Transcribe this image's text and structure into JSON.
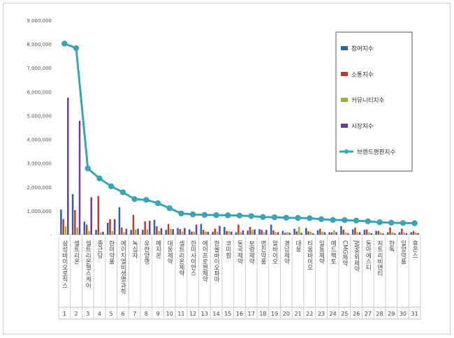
{
  "chart_data": {
    "type": "bar",
    "title": "",
    "xlabel": "",
    "ylabel": "",
    "ylim": [
      0,
      9000000
    ],
    "yticks": [
      "9,000,000",
      "8,000,000",
      "7,000,000",
      "6,000,000",
      "5,000,000",
      "4,000,000",
      "3,000,000",
      "2,000,000",
      "1,000,000",
      "-"
    ],
    "grid": false,
    "legend_position": "top-right",
    "categories": [
      "삼성바이오로직스",
      "셀트리온",
      "셀트리온헬스케어",
      "종근당",
      "한미약품",
      "에이치엘비생명과학",
      "녹십자",
      "유한양행",
      "메지온",
      "대웅제약",
      "셀트리온제약",
      "한미사이언스",
      "에이프로젠제약",
      "한올바이오파마",
      "코미팜",
      "동국제약",
      "보령제약",
      "영진약품",
      "알바이오",
      "경남제약",
      "대웅",
      "티움바이오",
      "일동제약",
      "메드팩토",
      "CMG제약",
      "JW중외제약",
      "동아에스티",
      "지트리비앤티",
      "한독",
      "일양약품",
      "휴온스"
    ],
    "indices": [
      "1",
      "2",
      "3",
      "4",
      "5",
      "6",
      "7",
      "8",
      "9",
      "10",
      "11",
      "12",
      "13",
      "14",
      "15",
      "16",
      "17",
      "18",
      "19",
      "20",
      "21",
      "22",
      "23",
      "24",
      "25",
      "26",
      "27",
      "28",
      "29",
      "30",
      "31"
    ],
    "series": [
      {
        "name": "참여지수",
        "color": "#2e5fa8",
        "type": "bar",
        "values": [
          1050000,
          1700000,
          550000,
          200000,
          500000,
          1150000,
          200000,
          200000,
          620000,
          200000,
          280000,
          220000,
          450000,
          120000,
          320000,
          100000,
          170000,
          230000,
          420000,
          160000,
          250000,
          280000,
          180000,
          100000,
          360000,
          220000,
          200000,
          160000,
          100000,
          100000,
          100000
        ]
      },
      {
        "name": "소통지수",
        "color": "#c0392b",
        "type": "bar",
        "values": [
          650000,
          1030000,
          420000,
          1620000,
          650000,
          300000,
          830000,
          560000,
          350000,
          450000,
          230000,
          130000,
          200000,
          250000,
          150000,
          420000,
          320000,
          200000,
          180000,
          80000,
          140000,
          140000,
          250000,
          100000,
          210000,
          300000,
          220000,
          160000,
          300000,
          250000,
          150000
        ]
      },
      {
        "name": "커뮤니티지수",
        "color": "#8db63c",
        "type": "bar",
        "values": [
          350000,
          300000,
          150000,
          100000,
          150000,
          100000,
          220000,
          220000,
          150000,
          250000,
          130000,
          120000,
          130000,
          120000,
          150000,
          100000,
          200000,
          100000,
          100000,
          100000,
          330000,
          120000,
          130000,
          180000,
          90000,
          100000,
          90000,
          90000,
          100000,
          90000,
          100000
        ]
      },
      {
        "name": "시장지수",
        "color": "#6a3d9a",
        "type": "bar",
        "values": [
          5750000,
          4780000,
          1570000,
          120000,
          650000,
          250000,
          250000,
          580000,
          270000,
          230000,
          280000,
          420000,
          120000,
          370000,
          120000,
          180000,
          220000,
          200000,
          100000,
          80000,
          80000,
          60000,
          100000,
          100000,
          60000,
          100000,
          60000,
          50000,
          60000,
          60000,
          60000
        ]
      },
      {
        "name": "브랜드평판지수",
        "color": "#3aa4b5",
        "type": "line",
        "values": [
          8020000,
          7830000,
          2780000,
          2360000,
          2030000,
          1780000,
          1490000,
          1460000,
          1320000,
          1110000,
          890000,
          850000,
          830000,
          820000,
          810000,
          800000,
          780000,
          740000,
          730000,
          710000,
          700000,
          690000,
          650000,
          620000,
          610000,
          590000,
          560000,
          520000,
          500000,
          490000,
          480000
        ]
      }
    ]
  }
}
